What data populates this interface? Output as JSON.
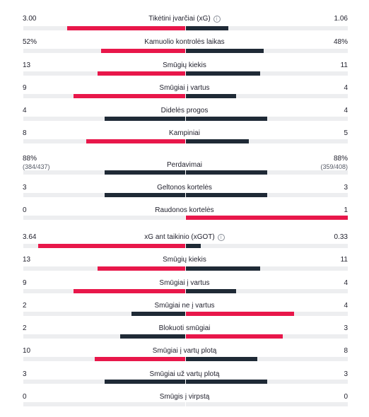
{
  "colors": {
    "leading": "#e8174a",
    "neutral": "#1f2a36",
    "track": "#edeef0"
  },
  "stats": [
    {
      "label": "Tikėtini įvarčiai (xG)",
      "info": true,
      "left": "3.00",
      "right": "1.06",
      "lfrac": 0.73,
      "rfrac": 0.26,
      "lc": "leading",
      "rc": "neutral"
    },
    {
      "label": "Kamuolio kontrolės laikas",
      "left": "52%",
      "right": "48%",
      "lfrac": 0.52,
      "rfrac": 0.48,
      "lc": "leading",
      "rc": "neutral"
    },
    {
      "label": "Smūgių kiekis",
      "left": "13",
      "right": "11",
      "lfrac": 0.54,
      "rfrac": 0.46,
      "lc": "leading",
      "rc": "neutral"
    },
    {
      "label": "Smūgiai į vartus",
      "left": "9",
      "right": "4",
      "lfrac": 0.69,
      "rfrac": 0.31,
      "lc": "leading",
      "rc": "neutral"
    },
    {
      "label": "Didelės progos",
      "left": "4",
      "right": "4",
      "lfrac": 0.5,
      "rfrac": 0.5,
      "lc": "neutral",
      "rc": "neutral"
    },
    {
      "label": "Kampiniai",
      "left": "8",
      "right": "5",
      "lfrac": 0.61,
      "rfrac": 0.39,
      "lc": "leading",
      "rc": "neutral"
    },
    {
      "label": "Perdavimai",
      "left": "88%",
      "right": "88%",
      "left_sub": "(384/437)",
      "right_sub": "(359/408)",
      "lfrac": 0.5,
      "rfrac": 0.5,
      "lc": "neutral",
      "rc": "neutral"
    },
    {
      "label": "Geltonos kortelės",
      "left": "3",
      "right": "3",
      "lfrac": 0.5,
      "rfrac": 0.5,
      "lc": "neutral",
      "rc": "neutral"
    },
    {
      "label": "Raudonos kortelės",
      "left": "0",
      "right": "1",
      "lfrac": 0,
      "rfrac": 1.0,
      "lc": "neutral",
      "rc": "leading"
    },
    {
      "label": "xG ant taikinio (xGOT)",
      "info": true,
      "left": "3.64",
      "right": "0.33",
      "lfrac": 0.91,
      "rfrac": 0.09,
      "lc": "leading",
      "rc": "neutral"
    },
    {
      "label": "Smūgių kiekis",
      "left": "13",
      "right": "11",
      "lfrac": 0.54,
      "rfrac": 0.46,
      "lc": "leading",
      "rc": "neutral"
    },
    {
      "label": "Smūgiai į vartus",
      "left": "9",
      "right": "4",
      "lfrac": 0.69,
      "rfrac": 0.31,
      "lc": "leading",
      "rc": "neutral"
    },
    {
      "label": "Smūgiai ne į vartus",
      "left": "2",
      "right": "4",
      "lfrac": 0.33,
      "rfrac": 0.67,
      "lc": "neutral",
      "rc": "leading"
    },
    {
      "label": "Blokuoti smūgiai",
      "left": "2",
      "right": "3",
      "lfrac": 0.4,
      "rfrac": 0.6,
      "lc": "neutral",
      "rc": "leading"
    },
    {
      "label": "Smūgiai į vartų plotą",
      "left": "10",
      "right": "8",
      "lfrac": 0.56,
      "rfrac": 0.44,
      "lc": "leading",
      "rc": "neutral"
    },
    {
      "label": "Smūgiai už vartų plotą",
      "left": "3",
      "right": "3",
      "lfrac": 0.5,
      "rfrac": 0.5,
      "lc": "neutral",
      "rc": "neutral"
    },
    {
      "label": "Smūgis į virpstą",
      "left": "0",
      "right": "0",
      "lfrac": 0,
      "rfrac": 0,
      "lc": "neutral",
      "rc": "neutral"
    }
  ]
}
